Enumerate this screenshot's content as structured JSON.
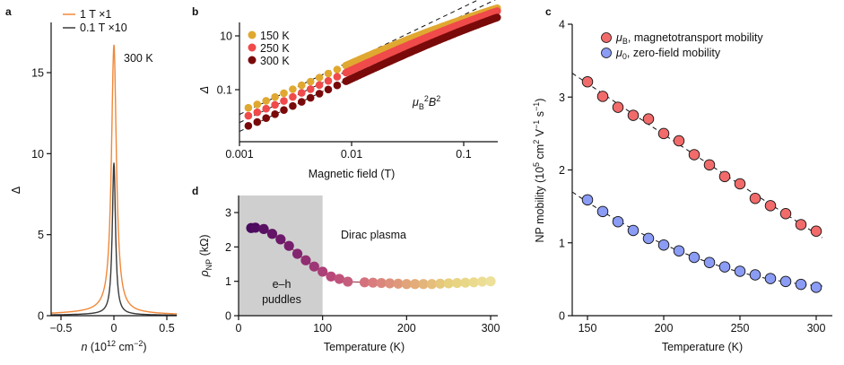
{
  "chart_data": [
    {
      "panel": "a",
      "type": "line",
      "title": "",
      "annotation": "300 K",
      "xlabel": "n (10^12 cm^-2)",
      "xlabel_parts": {
        "var": "n",
        "rest": " (10",
        "sup1": "12",
        "mid": " cm",
        "sup2": "−2",
        "end": ")"
      },
      "ylabel": "Δ",
      "xlim": [
        -0.6,
        0.6
      ],
      "ylim": [
        0,
        17.5
      ],
      "xticks": [
        -0.5,
        0,
        0.5
      ],
      "xtick_labels": [
        "−0.5",
        "0",
        "0.5"
      ],
      "yticks": [
        0,
        5,
        10,
        15
      ],
      "ytick_labels": [
        "0",
        "5",
        "10",
        "15"
      ],
      "legend_position": "top-left",
      "series": [
        {
          "name": "1 T ×1",
          "color": "#f0883a",
          "peak": 16.9,
          "halfwidth": 0.028,
          "tail": 0.3
        },
        {
          "name": "0.1 T ×10",
          "color": "#3a3a3a",
          "peak": 9.5,
          "halfwidth": 0.018,
          "tail": 0.1
        }
      ]
    },
    {
      "panel": "b",
      "type": "scatter",
      "xscale": "log",
      "yscale": "log",
      "xlabel": "Magnetic field (T)",
      "ylabel": "Δ",
      "xlim": [
        0.001,
        0.2
      ],
      "ylim": [
        0.0012,
        50
      ],
      "xticks": [
        0.001,
        0.01,
        0.1
      ],
      "xtick_labels": [
        "0.001",
        "0.01",
        "0.1"
      ],
      "yticks": [
        10,
        0.1
      ],
      "ytick_labels": [
        "10",
        "0.1"
      ],
      "annotation": {
        "mu": "μ",
        "sub": "B",
        "sup": "2",
        "B": "B",
        "sup2": "2",
        "text": "μB²B²"
      },
      "legend_position": "top-left",
      "series": [
        {
          "name": "150 K",
          "color": "#e0a830",
          "coef": 1.0,
          "sat": 0.05
        },
        {
          "name": "250 K",
          "color": "#f04a4a",
          "coef": 0.45,
          "sat": 0.1
        },
        {
          "name": "300 K",
          "color": "#7a0a0a",
          "coef": 0.2,
          "sat": 0.15
        }
      ]
    },
    {
      "panel": "c",
      "type": "scatter",
      "xlabel": "Temperature (K)",
      "ylabel": "NP mobility (10^5 cm^2 V^-1 s^-1)",
      "xlim": [
        140,
        305
      ],
      "ylim": [
        0,
        4
      ],
      "xticks": [
        150,
        200,
        250,
        300
      ],
      "xtick_labels": [
        "150",
        "200",
        "250",
        "300"
      ],
      "yticks": [
        0,
        1,
        2,
        3,
        4
      ],
      "ytick_labels": [
        "0",
        "1",
        "2",
        "3",
        "4"
      ],
      "legend_position": "top",
      "x": [
        150,
        160,
        170,
        180,
        190,
        200,
        210,
        220,
        230,
        240,
        250,
        260,
        270,
        280,
        290,
        300
      ],
      "series": [
        {
          "name": "μB, magnetotransport mobility",
          "sym": "μ",
          "sub": "B",
          "rest": ", magnetotransport mobility",
          "color": "#f26b6b",
          "values": [
            3.21,
            3.01,
            2.86,
            2.75,
            2.7,
            2.5,
            2.4,
            2.21,
            2.07,
            1.91,
            1.81,
            1.61,
            1.51,
            1.4,
            1.25,
            1.16
          ]
        },
        {
          "name": "μ0, zero-field mobility",
          "sym": "μ",
          "sub": "0",
          "rest": ", zero-field mobility",
          "color": "#8b9cf4",
          "values": [
            1.59,
            1.43,
            1.29,
            1.17,
            1.06,
            0.97,
            0.89,
            0.8,
            0.73,
            0.67,
            0.61,
            0.56,
            0.51,
            0.47,
            0.43,
            0.39
          ]
        }
      ]
    },
    {
      "panel": "d",
      "type": "scatter",
      "xlabel": "Temperature (K)",
      "ylabel": "ρNP (kΩ)",
      "xlim": [
        0,
        310
      ],
      "ylim": [
        0,
        3.5
      ],
      "xticks": [
        0,
        100,
        200,
        300
      ],
      "xtick_labels": [
        "0",
        "100",
        "200",
        "300"
      ],
      "yticks": [
        0,
        1,
        2,
        3
      ],
      "ytick_labels": [
        "0",
        "1",
        "2",
        "3"
      ],
      "shaded_region": [
        0,
        100
      ],
      "annotations": [
        "Dirac plasma",
        "e–h",
        "puddles"
      ],
      "x": [
        15,
        20,
        30,
        40,
        50,
        60,
        70,
        80,
        90,
        100,
        110,
        120,
        130,
        150,
        160,
        170,
        180,
        190,
        200,
        210,
        220,
        230,
        240,
        250,
        260,
        270,
        280,
        290,
        300
      ],
      "values": [
        2.55,
        2.56,
        2.52,
        2.38,
        2.22,
        2.03,
        1.8,
        1.61,
        1.43,
        1.28,
        1.14,
        1.07,
        0.99,
        0.97,
        0.96,
        0.95,
        0.94,
        0.93,
        0.92,
        0.92,
        0.92,
        0.92,
        0.93,
        0.94,
        0.95,
        0.96,
        0.97,
        0.99,
        1.0
      ],
      "colormap": [
        "#4a0a5e",
        "#7a1f6e",
        "#b8487a",
        "#d87a7e",
        "#e2a878",
        "#e7d27e",
        "#ede09a"
      ]
    }
  ],
  "panel_labels": [
    "a",
    "b",
    "c",
    "d"
  ]
}
